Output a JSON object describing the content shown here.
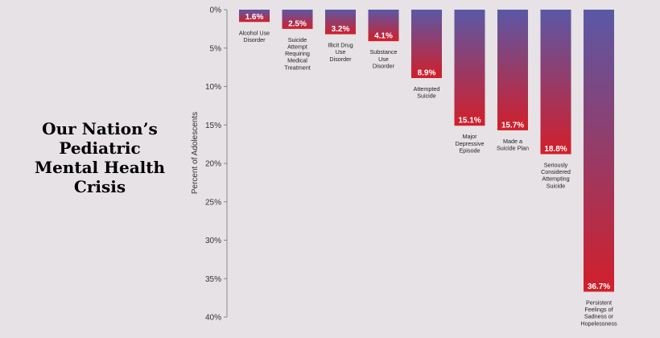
{
  "headline": {
    "lines": [
      "Our Nation’s",
      "Pediatric",
      "Mental Health",
      "Crisis"
    ]
  },
  "chart_data": {
    "type": "bar",
    "orientation": "vertical-inverted",
    "title": "",
    "xlabel": "",
    "ylabel": "Percent of Adolescents",
    "ylim": [
      0,
      40
    ],
    "yticks": [
      "0%",
      "5%",
      "10%",
      "15%",
      "20%",
      "25%",
      "30%",
      "35%",
      "40%"
    ],
    "grid": false,
    "categories": [
      [
        "Alcohol Use",
        "Disorder"
      ],
      [
        "Suicide",
        "Attempt",
        "Requiring",
        "Medical",
        "Treatment"
      ],
      [
        "Illicit Drug",
        "Use",
        "Disorder"
      ],
      [
        "Substance",
        "Use",
        "Disorder"
      ],
      [
        "Attempted",
        "Suicide"
      ],
      [
        "Major",
        "Depressive",
        "Episode"
      ],
      [
        "Made a",
        "Suicide Plan"
      ],
      [
        "Seriously",
        "Considered",
        "Attempting",
        "Suicide"
      ],
      [
        "Persistent",
        "Feelings of",
        "Sadness or",
        "Hopelessness"
      ]
    ],
    "values": [
      1.6,
      2.5,
      3.2,
      4.1,
      8.9,
      15.1,
      15.7,
      18.8,
      36.7
    ],
    "value_labels": [
      "1.6%",
      "2.5%",
      "3.2%",
      "4.1%",
      "8.9%",
      "15.1%",
      "15.7%",
      "18.8%",
      "36.7%"
    ],
    "colors": {
      "top": "#5a58a6",
      "bottom": "#d21f2a",
      "axis": "#8a8a8a"
    }
  }
}
